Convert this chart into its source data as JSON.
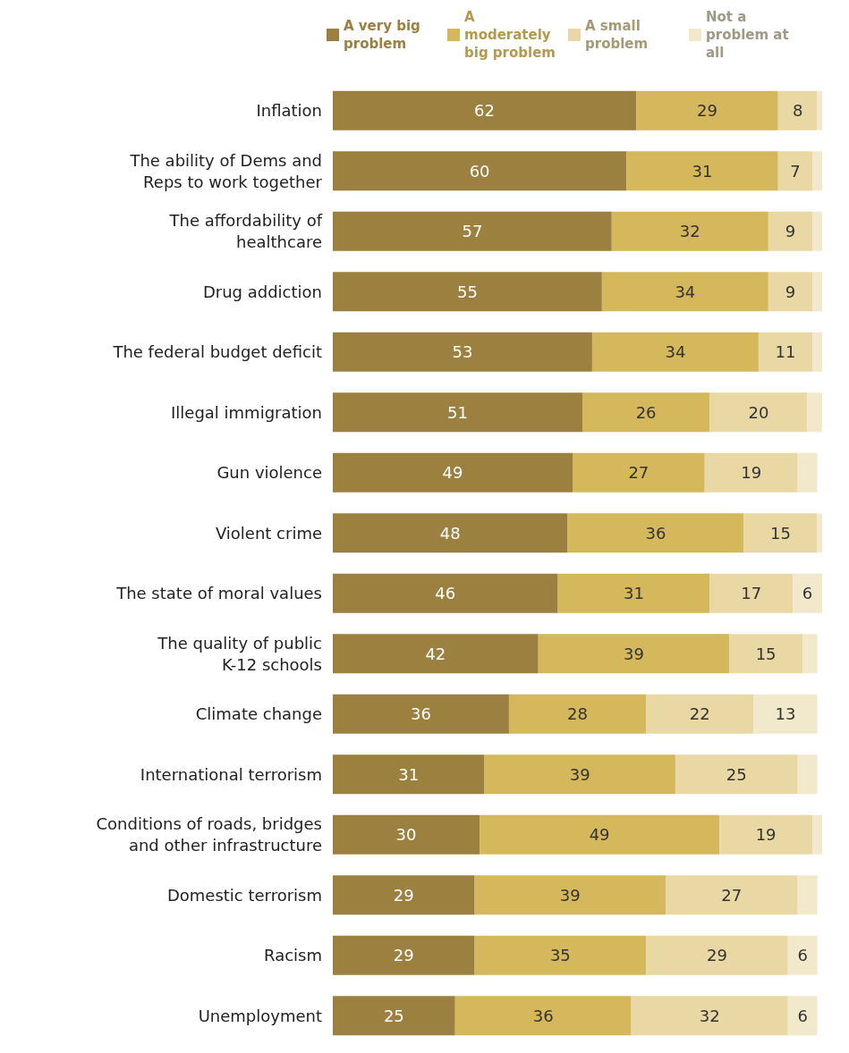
{
  "chart_data": {
    "type": "bar",
    "orientation": "horizontal",
    "stacked": true,
    "legend": "top",
    "categories": [
      "Inflation",
      "The ability of Dems and\nReps to work together",
      "The affordability of\nhealthcare",
      "Drug addiction",
      "The federal budget deficit",
      "Illegal immigration",
      "Gun violence",
      "Violent crime",
      "The state of moral values",
      "The quality of public\nK-12 schools",
      "Climate change",
      "International terrorism",
      "Conditions of roads, bridges\nand other infrastructure",
      "Domestic terrorism",
      "Racism",
      "Unemployment"
    ],
    "series": [
      {
        "name": "A very big problem",
        "color": "#9c8040",
        "values": [
          62,
          60,
          57,
          55,
          53,
          51,
          49,
          48,
          46,
          42,
          36,
          31,
          30,
          29,
          29,
          25
        ],
        "value_labels": [
          "62",
          "60",
          "57",
          "55",
          "53",
          "51",
          "49",
          "48",
          "46",
          "42",
          "36",
          "31",
          "30",
          "29",
          "29",
          "25"
        ]
      },
      {
        "name": "A moderately big problem",
        "color": "#d5b75c",
        "values": [
          29,
          31,
          32,
          34,
          34,
          26,
          27,
          36,
          31,
          39,
          28,
          39,
          49,
          39,
          35,
          36
        ],
        "value_labels": [
          "29",
          "31",
          "32",
          "34",
          "34",
          "26",
          "27",
          "36",
          "31",
          "39",
          "28",
          "39",
          "49",
          "39",
          "35",
          "36"
        ]
      },
      {
        "name": "A small problem",
        "color": "#e9d8a4",
        "values": [
          8,
          7,
          9,
          9,
          11,
          20,
          19,
          15,
          17,
          15,
          22,
          25,
          19,
          27,
          29,
          32
        ],
        "value_labels": [
          "8",
          "7",
          "9",
          "9",
          "11",
          "20",
          "19",
          "15",
          "17",
          "15",
          "22",
          "25",
          "19",
          "27",
          "29",
          "32"
        ]
      },
      {
        "name": "Not a problem at all",
        "color": "#f2e8cb",
        "values": [
          1,
          2,
          2,
          2,
          2,
          3,
          4,
          1,
          6,
          3,
          13,
          4,
          2,
          4,
          6,
          6
        ],
        "value_labels": [
          null,
          null,
          null,
          null,
          null,
          null,
          null,
          null,
          "6",
          null,
          "13",
          null,
          null,
          null,
          "6",
          "6"
        ]
      }
    ]
  }
}
